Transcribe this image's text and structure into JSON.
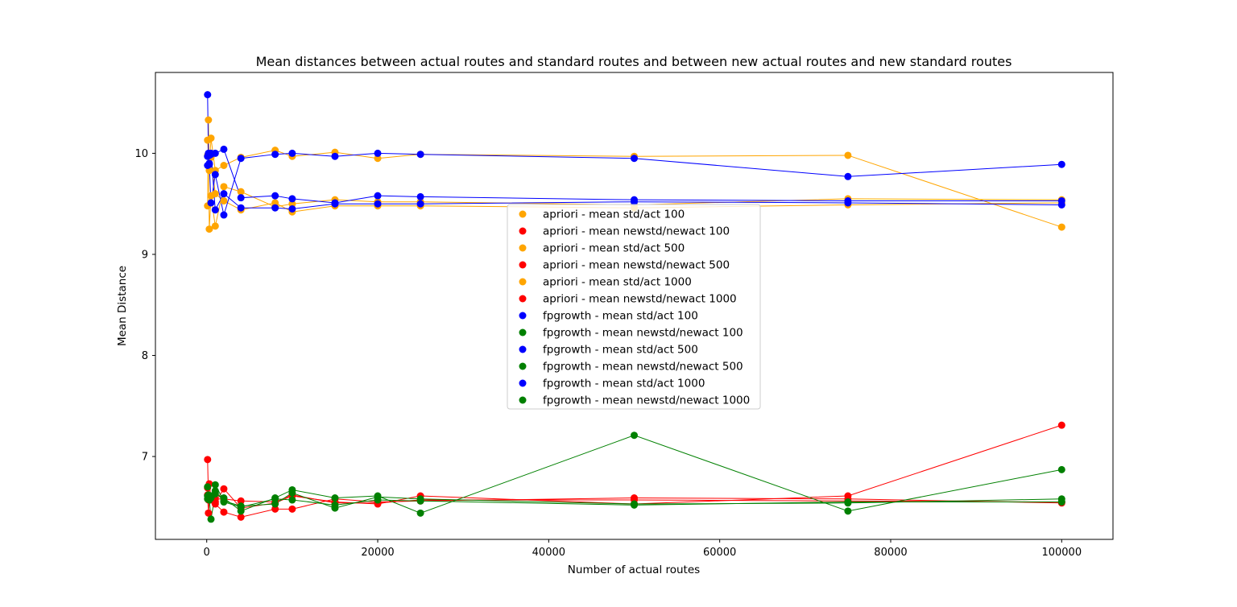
{
  "chart_data": {
    "type": "line",
    "title": "Mean distances between actual routes and standard routes and between new actual routes and new standard routes",
    "xlabel": "Number of actual routes",
    "ylabel": "Mean Distance",
    "xlim": [
      -6000,
      106000
    ],
    "ylim": [
      6.18,
      10.8
    ],
    "xticks": [
      0,
      20000,
      40000,
      60000,
      80000,
      100000
    ],
    "yticks": [
      7,
      8,
      9,
      10
    ],
    "grid": false,
    "legend_position": "center",
    "x": [
      100,
      200,
      300,
      500,
      1000,
      2000,
      4000,
      8000,
      10000,
      15000,
      20000,
      25000,
      50000,
      75000,
      100000
    ],
    "series": [
      {
        "name": "apriori - mean std/act 100",
        "color": "#ffa500",
        "values": [
          9.48,
          10.33,
          9.83,
          10.15,
          9.83,
          9.88,
          9.96,
          10.03,
          9.97,
          10.01,
          9.95,
          9.99,
          9.97,
          9.98,
          9.27
        ]
      },
      {
        "name": "apriori - mean newstd/newact 100",
        "color": "#ff0000",
        "values": [
          6.97,
          6.6,
          6.73,
          6.59,
          6.55,
          6.68,
          6.49,
          6.54,
          6.61,
          6.55,
          6.53,
          6.61,
          6.53,
          6.61,
          7.31
        ]
      },
      {
        "name": "apriori - mean std/act 500",
        "color": "#ffa500",
        "values": [
          10.13,
          9.98,
          9.25,
          9.58,
          9.28,
          9.67,
          9.62,
          9.47,
          9.5,
          9.54,
          9.52,
          9.52,
          9.49,
          9.55,
          9.54
        ]
      },
      {
        "name": "apriori - mean newstd/newact 500",
        "color": "#ff0000",
        "values": [
          6.62,
          6.44,
          6.6,
          6.61,
          6.53,
          6.45,
          6.4,
          6.48,
          6.48,
          6.58,
          6.55,
          6.56,
          6.59,
          6.58,
          6.54
        ]
      },
      {
        "name": "apriori - mean std/act 1000",
        "color": "#ffa500",
        "values": [
          9.98,
          9.97,
          9.99,
          9.96,
          9.6,
          9.53,
          9.44,
          9.51,
          9.42,
          9.48,
          9.48,
          9.48,
          9.46,
          9.49,
          9.51
        ]
      },
      {
        "name": "apriori - mean newstd/newact 1000",
        "color": "#ff0000",
        "values": [
          6.69,
          6.57,
          6.58,
          6.57,
          6.58,
          6.58,
          6.56,
          6.55,
          6.62,
          6.54,
          6.54,
          6.57,
          6.57,
          6.56,
          6.55
        ]
      },
      {
        "name": "fpgrowth - mean std/act 100",
        "color": "#0000ff",
        "values": [
          10.58,
          9.98,
          9.9,
          9.51,
          9.79,
          9.39,
          9.95,
          9.99,
          10.0,
          9.97,
          10.0,
          9.99,
          9.95,
          9.77,
          9.89
        ]
      },
      {
        "name": "fpgrowth - mean newstd/newact 100",
        "color": "#008000",
        "values": [
          6.7,
          6.6,
          6.58,
          6.38,
          6.63,
          6.59,
          6.46,
          6.59,
          6.67,
          6.59,
          6.61,
          6.44,
          7.21,
          6.46,
          6.87
        ]
      },
      {
        "name": "fpgrowth - mean std/act 500",
        "color": "#0000ff",
        "values": [
          9.97,
          10.0,
          9.98,
          9.99,
          10.0,
          10.04,
          9.56,
          9.58,
          9.55,
          9.51,
          9.58,
          9.57,
          9.54,
          9.53,
          9.53
        ]
      },
      {
        "name": "fpgrowth - mean newstd/newact 500",
        "color": "#008000",
        "values": [
          6.58,
          6.62,
          6.58,
          6.59,
          6.72,
          6.56,
          6.51,
          6.53,
          6.64,
          6.49,
          6.6,
          6.58,
          6.53,
          6.54,
          6.58
        ]
      },
      {
        "name": "fpgrowth - mean std/act 1000",
        "color": "#0000ff",
        "values": [
          9.88,
          9.99,
          9.89,
          10.0,
          9.44,
          9.6,
          9.46,
          9.46,
          9.45,
          9.5,
          9.5,
          9.5,
          9.52,
          9.51,
          9.49
        ]
      },
      {
        "name": "fpgrowth - mean newstd/newact 1000",
        "color": "#008000",
        "values": [
          6.61,
          6.58,
          6.57,
          6.61,
          6.66,
          6.55,
          6.5,
          6.58,
          6.57,
          6.52,
          6.57,
          6.56,
          6.52,
          6.55,
          6.55
        ]
      }
    ]
  }
}
